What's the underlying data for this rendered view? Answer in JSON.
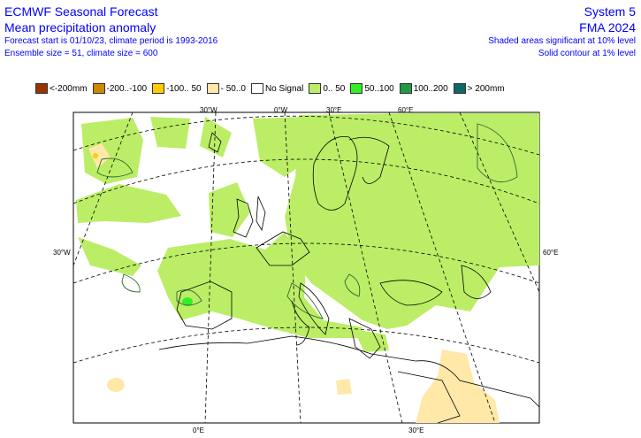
{
  "header": {
    "title": "ECMWF Seasonal Forecast",
    "subtitle": "Mean precipitation anomaly",
    "forecast_info": "Forecast start is 01/10/23, climate period is 1993-2016",
    "ensemble_info": "Ensemble size = 51, climate size = 600",
    "system": "System 5",
    "period": "FMA 2024",
    "significance_shaded": "Shaded areas significant at 10% level",
    "significance_contour": "Solid contour at 1% level"
  },
  "legend": [
    {
      "label": "<-200mm",
      "color": "#993300"
    },
    {
      "label": "-200..-100",
      "color": "#cc8800"
    },
    {
      "label": "-100.. 50",
      "color": "#ffcc00"
    },
    {
      "label": "- 50..0",
      "color": "#ffe8a8"
    },
    {
      "label": "No Signal",
      "color": "#ffffff"
    },
    {
      "label": "0.. 50",
      "color": "#bbee66"
    },
    {
      "label": "50..100",
      "color": "#33ee22"
    },
    {
      "label": "100..200",
      "color": "#229944"
    },
    {
      "label": "> 200mm",
      "color": "#116666"
    }
  ],
  "map": {
    "graticule_labels": {
      "top_30w": "30°W",
      "top_0": "0°W",
      "top_30e": "30°E",
      "top_60e": "60°E",
      "left_30w": "30°W",
      "right_60e": "60°E",
      "bottom_0": "0°E",
      "bottom_30e": "30°E"
    }
  }
}
